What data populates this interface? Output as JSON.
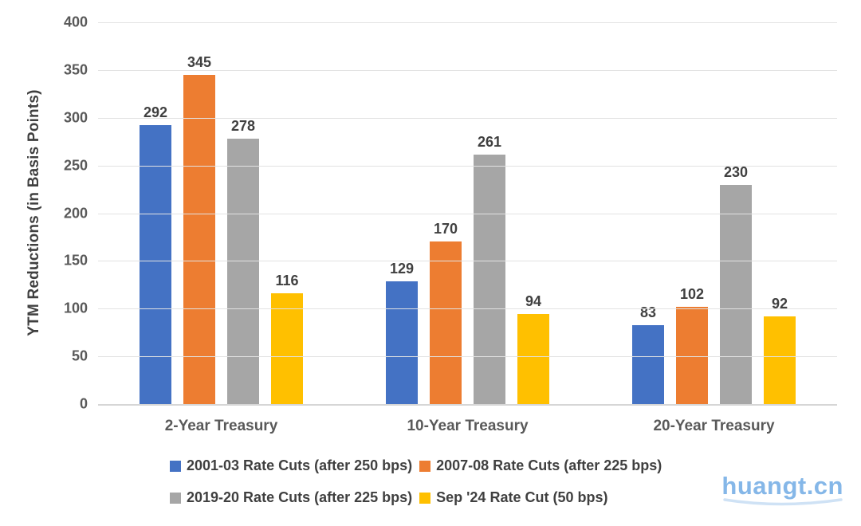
{
  "chart_data": {
    "type": "bar",
    "title": "",
    "xlabel": "",
    "ylabel": "YTM Reductions (in Basis Points)",
    "ylim": [
      0,
      400
    ],
    "ytick_interval": 50,
    "yticks": [
      400,
      350,
      300,
      250,
      200,
      150,
      100,
      50,
      0
    ],
    "grid": true,
    "legend_position": "bottom",
    "categories": [
      "2-Year Treasury",
      "10-Year Treasury",
      "20-Year Treasury"
    ],
    "series": [
      {
        "name": "2001-03 Rate Cuts (after 250 bps)",
        "color": "#4472C4",
        "values": [
          292,
          129,
          83
        ]
      },
      {
        "name": "2007-08 Rate Cuts (after 225 bps)",
        "color": "#ED7D31",
        "values": [
          345,
          170,
          102
        ]
      },
      {
        "name": "2019-20 Rate Cuts (after 225 bps)",
        "color": "#A6A6A6",
        "values": [
          278,
          261,
          230
        ]
      },
      {
        "name": "Sep '24 Rate Cut (50 bps)",
        "color": "#FFC000",
        "values": [
          116,
          94,
          92
        ]
      }
    ],
    "legend_rows": [
      [
        0,
        1
      ],
      [
        2,
        3
      ]
    ],
    "colors": {
      "gridline": "#E2E2E2",
      "axis_line": "#D6D6D6",
      "data_label_text": "#404040",
      "tick_text": "#595959"
    }
  },
  "watermark": {
    "text": "huangt.cn",
    "color": "#85B7E8",
    "swoosh_color": "#CFE2F5"
  }
}
